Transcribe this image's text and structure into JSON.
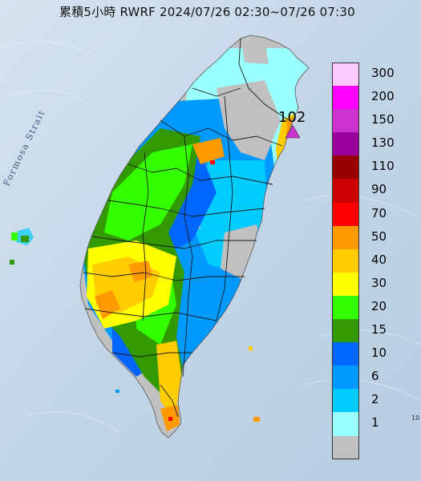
{
  "title": "累積5小時 RWRF 2024/07/26 02:30~07/26 07:30",
  "sea_label": "Formosa Strait",
  "max_marker": {
    "value": "102",
    "color": "#cc33cc"
  },
  "edge_mark": "10",
  "legend": {
    "items": [
      {
        "label": "300",
        "color": "#fdcaff"
      },
      {
        "label": "200",
        "color": "#ff00ff"
      },
      {
        "label": "150",
        "color": "#cc33cc"
      },
      {
        "label": "130",
        "color": "#990099"
      },
      {
        "label": "110",
        "color": "#990000"
      },
      {
        "label": "90",
        "color": "#cc0000"
      },
      {
        "label": "70",
        "color": "#ff0000"
      },
      {
        "label": "50",
        "color": "#ff9900"
      },
      {
        "label": "40",
        "color": "#ffcc00"
      },
      {
        "label": "30",
        "color": "#ffff00"
      },
      {
        "label": "20",
        "color": "#33ff00"
      },
      {
        "label": "15",
        "color": "#339900"
      },
      {
        "label": "10",
        "color": "#0066ff"
      },
      {
        "label": "6",
        "color": "#0099ff"
      },
      {
        "label": "2",
        "color": "#00ccff"
      },
      {
        "label": "1",
        "color": "#99ffff"
      },
      {
        "label": "",
        "color": "#c0c0c0"
      }
    ]
  },
  "colors": {
    "sea": "#c4d6e8",
    "gray": "#c0c0c0",
    "light_cyan": "#99ffff",
    "cyan": "#00ccff",
    "blue": "#0099ff",
    "deep_blue": "#0066ff",
    "dark_green": "#339900",
    "green": "#33ff00",
    "yellow": "#ffff00",
    "amber": "#ffcc00",
    "orange": "#ff9900",
    "red": "#ff0000",
    "boundary": "#1a1a1a"
  }
}
